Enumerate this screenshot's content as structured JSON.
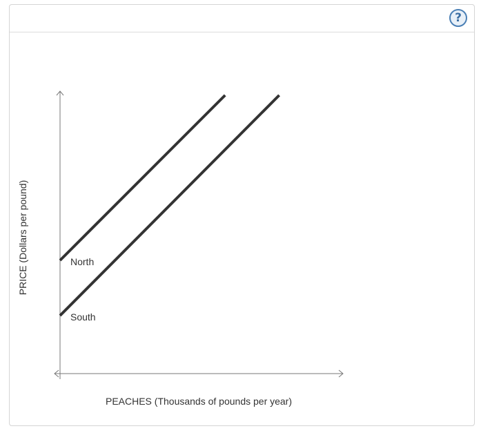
{
  "help": {
    "glyph": "?",
    "icon": "question-circle-icon",
    "color": "#4a7fb5"
  },
  "chart_data": {
    "type": "line",
    "xlabel": "PEACHES (Thousands of pounds per year)",
    "ylabel": "PRICE (Dollars per pound)",
    "xlim": [
      0,
      100
    ],
    "ylim": [
      0,
      100
    ],
    "ticks_shown": false,
    "grid": false,
    "line_color": "#333333",
    "series": [
      {
        "name": "North",
        "x": [
          0,
          59.8
        ],
        "y": [
          40.2,
          98.8
        ]
      },
      {
        "name": "South",
        "x": [
          0,
          79.4
        ],
        "y": [
          20.6,
          98.8
        ]
      }
    ]
  }
}
